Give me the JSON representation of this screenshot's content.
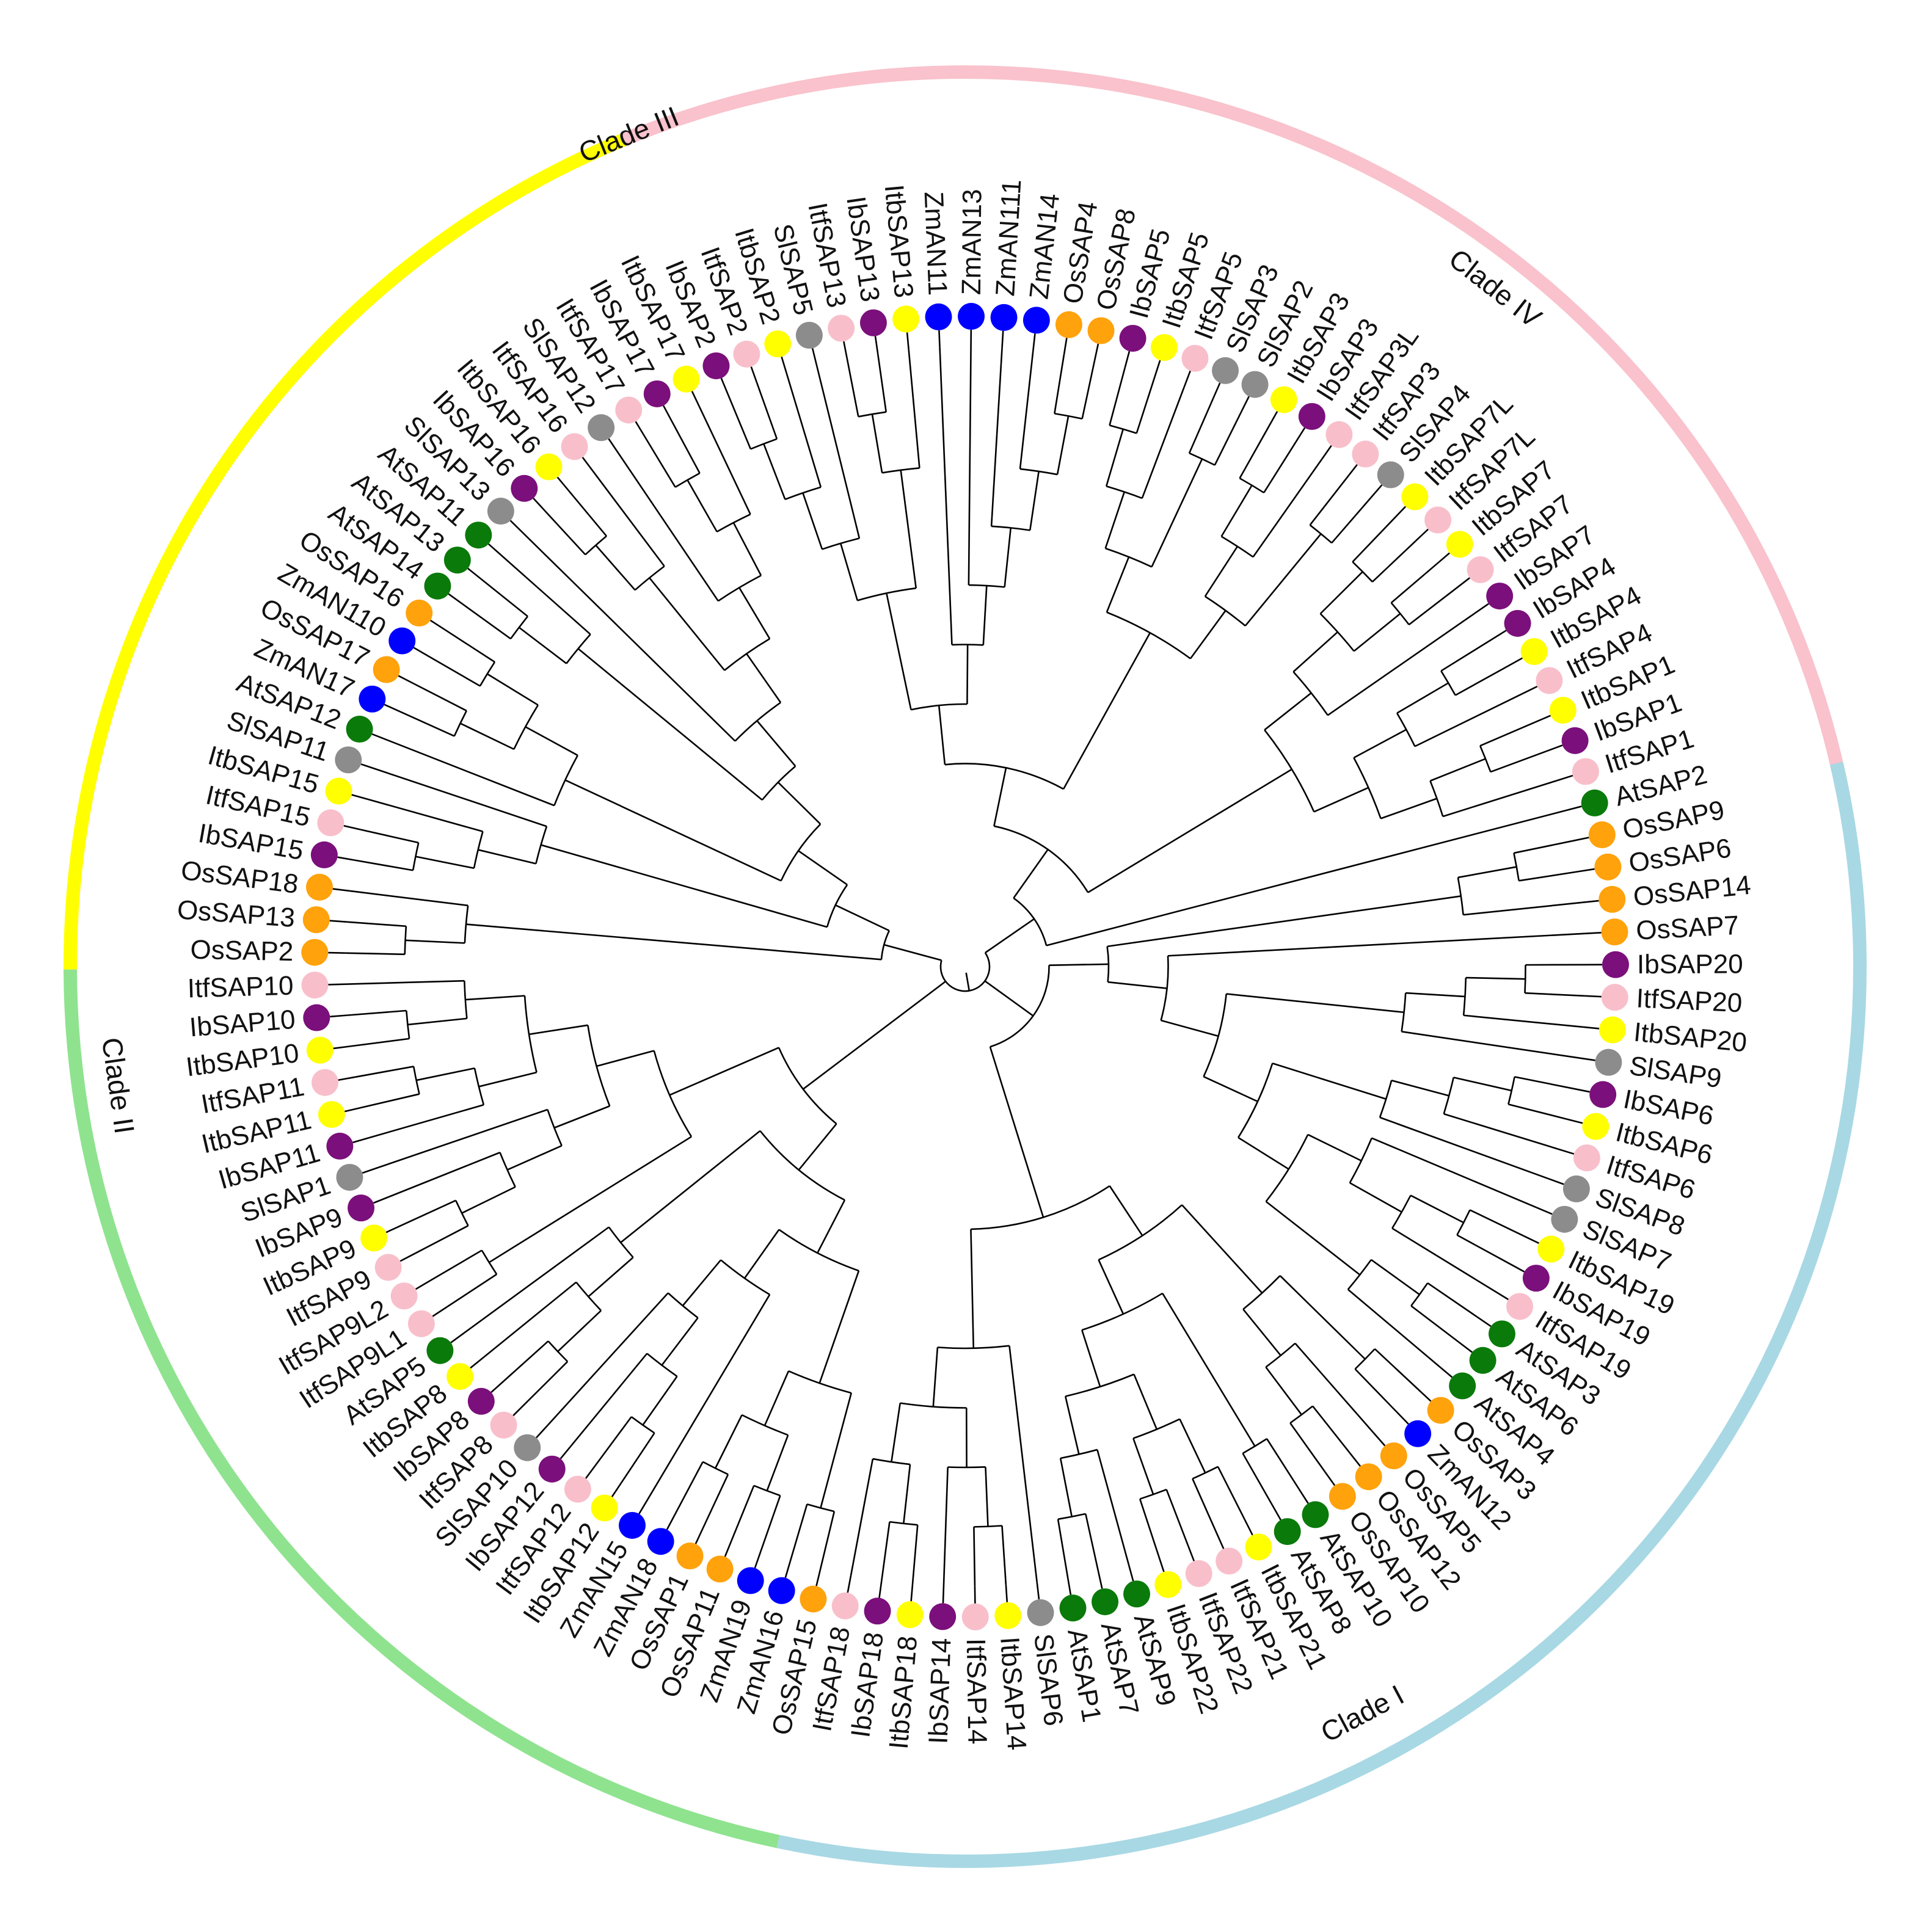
{
  "species_colors": {
    "Ib": "#7b0f7b",
    "Itf": "#f8bfcb",
    "Itb": "#ffff00",
    "Sl": "#8c8c8c",
    "At": "#0a7a0a",
    "Os": "#ffa20b",
    "Zm": "#0000ff"
  },
  "clades": [
    {
      "name": "Clade I",
      "color": "#f9c2cc"
    },
    {
      "name": "Clade II",
      "color": "#a8d8e4"
    },
    {
      "name": "Clade III",
      "color": "#8fe38f"
    },
    {
      "name": "Clade IV",
      "color": "#ffff00"
    }
  ],
  "leaves": [
    {
      "label": "IbSAP2",
      "species": "Ib"
    },
    {
      "label": "ItfSAP2",
      "species": "Itf"
    },
    {
      "label": "ItbSAP2",
      "species": "Itb"
    },
    {
      "label": "SlSAP5",
      "species": "Sl"
    },
    {
      "label": "ItfSAP13",
      "species": "Itf"
    },
    {
      "label": "IbSAP13",
      "species": "Ib"
    },
    {
      "label": "ItbSAP13",
      "species": "Itb"
    },
    {
      "label": "ZmAN11",
      "species": "Zm"
    },
    {
      "label": "ZmAN13",
      "species": "Zm"
    },
    {
      "label": "ZmAN111",
      "species": "Zm"
    },
    {
      "label": "ZmAN14",
      "species": "Zm"
    },
    {
      "label": "OsSAP4",
      "species": "Os"
    },
    {
      "label": "OsSAP8",
      "species": "Os"
    },
    {
      "label": "IbSAP5",
      "species": "Ib"
    },
    {
      "label": "ItbSAP5",
      "species": "Itb"
    },
    {
      "label": "ItfSAP5",
      "species": "Itf"
    },
    {
      "label": "SlSAP3",
      "species": "Sl"
    },
    {
      "label": "SlSAP2",
      "species": "Sl"
    },
    {
      "label": "ItbSAP3",
      "species": "Itb"
    },
    {
      "label": "IbSAP3",
      "species": "Ib"
    },
    {
      "label": "ItfSAP3L",
      "species": "Itf"
    },
    {
      "label": "ItfSAP3",
      "species": "Itf"
    },
    {
      "label": "SlSAP4",
      "species": "Sl"
    },
    {
      "label": "ItbSAP7L",
      "species": "Itb"
    },
    {
      "label": "ItfSAP7L",
      "species": "Itf"
    },
    {
      "label": "ItbSAP7",
      "species": "Itb"
    },
    {
      "label": "ItfSAP7",
      "species": "Itf"
    },
    {
      "label": "IbSAP7",
      "species": "Ib"
    },
    {
      "label": "IbSAP4",
      "species": "Ib"
    },
    {
      "label": "ItbSAP4",
      "species": "Itb"
    },
    {
      "label": "ItfSAP4",
      "species": "Itf"
    },
    {
      "label": "ItbSAP1",
      "species": "Itb"
    },
    {
      "label": "IbSAP1",
      "species": "Ib"
    },
    {
      "label": "ItfSAP1",
      "species": "Itf"
    },
    {
      "label": "AtSAP2",
      "species": "At"
    },
    {
      "label": "OsSAP9",
      "species": "Os"
    },
    {
      "label": "OsSAP6",
      "species": "Os"
    },
    {
      "label": "OsSAP14",
      "species": "Os"
    },
    {
      "label": "OsSAP7",
      "species": "Os"
    },
    {
      "label": "IbSAP20",
      "species": "Ib"
    },
    {
      "label": "ItfSAP20",
      "species": "Itf"
    },
    {
      "label": "ItbSAP20",
      "species": "Itb"
    },
    {
      "label": "SlSAP9",
      "species": "Sl"
    },
    {
      "label": "IbSAP6",
      "species": "Ib"
    },
    {
      "label": "ItbSAP6",
      "species": "Itb"
    },
    {
      "label": "ItfSAP6",
      "species": "Itf"
    },
    {
      "label": "SlSAP8",
      "species": "Sl"
    },
    {
      "label": "SlSAP7",
      "species": "Sl"
    },
    {
      "label": "ItbSAP19",
      "species": "Itb"
    },
    {
      "label": "IbSAP19",
      "species": "Ib"
    },
    {
      "label": "ItfSAP19",
      "species": "Itf"
    },
    {
      "label": "AtSAP3",
      "species": "At"
    },
    {
      "label": "AtSAP6",
      "species": "At"
    },
    {
      "label": "AtSAP4",
      "species": "At"
    },
    {
      "label": "OsSAP3",
      "species": "Os"
    },
    {
      "label": "ZmAN12",
      "species": "Zm"
    },
    {
      "label": "OsSAP5",
      "species": "Os"
    },
    {
      "label": "OsSAP12",
      "species": "Os"
    },
    {
      "label": "OsSAP10",
      "species": "Os"
    },
    {
      "label": "AtSAP10",
      "species": "At"
    },
    {
      "label": "AtSAP8",
      "species": "At"
    },
    {
      "label": "ItbSAP21",
      "species": "Itb"
    },
    {
      "label": "ItfSAP21",
      "species": "Itf"
    },
    {
      "label": "ItfSAP22",
      "species": "Itf"
    },
    {
      "label": "ItbSAP22",
      "species": "Itb"
    },
    {
      "label": "AtSAP9",
      "species": "At"
    },
    {
      "label": "AtSAP7",
      "species": "At"
    },
    {
      "label": "AtSAP1",
      "species": "At"
    },
    {
      "label": "SlSAP6",
      "species": "Sl"
    },
    {
      "label": "ItbSAP14",
      "species": "Itb"
    },
    {
      "label": "ItfSAP14",
      "species": "Itf"
    },
    {
      "label": "IbSAP14",
      "species": "Ib"
    },
    {
      "label": "ItbSAP18",
      "species": "Itb"
    },
    {
      "label": "IbSAP18",
      "species": "Ib"
    },
    {
      "label": "ItfSAP18",
      "species": "Itf"
    },
    {
      "label": "OsSAP15",
      "species": "Os"
    },
    {
      "label": "ZmAN16",
      "species": "Zm"
    },
    {
      "label": "ZmAN19",
      "species": "Zm"
    },
    {
      "label": "OsSAP11",
      "species": "Os"
    },
    {
      "label": "OsSAP1",
      "species": "Os"
    },
    {
      "label": "ZmAN18",
      "species": "Zm"
    },
    {
      "label": "ZmAN15",
      "species": "Zm"
    },
    {
      "label": "ItbSAP12",
      "species": "Itb"
    },
    {
      "label": "ItfSAP12",
      "species": "Itf"
    },
    {
      "label": "IbSAP12",
      "species": "Ib"
    },
    {
      "label": "SlSAP10",
      "species": "Sl"
    },
    {
      "label": "ItfSAP8",
      "species": "Itf"
    },
    {
      "label": "IbSAP8",
      "species": "Ib"
    },
    {
      "label": "ItbSAP8",
      "species": "Itb"
    },
    {
      "label": "AtSAP5",
      "species": "At"
    },
    {
      "label": "ItfSAP9L1",
      "species": "Itf"
    },
    {
      "label": "ItfSAP9L2",
      "species": "Itf"
    },
    {
      "label": "ItfSAP9",
      "species": "Itf"
    },
    {
      "label": "ItbSAP9",
      "species": "Itb"
    },
    {
      "label": "IbSAP9",
      "species": "Ib"
    },
    {
      "label": "SlSAP1",
      "species": "Sl"
    },
    {
      "label": "IbSAP11",
      "species": "Ib"
    },
    {
      "label": "ItbSAP11",
      "species": "Itb"
    },
    {
      "label": "ItfSAP11",
      "species": "Itf"
    },
    {
      "label": "ItbSAP10",
      "species": "Itb"
    },
    {
      "label": "IbSAP10",
      "species": "Ib"
    },
    {
      "label": "ItfSAP10",
      "species": "Itf"
    },
    {
      "label": "OsSAP2",
      "species": "Os"
    },
    {
      "label": "OsSAP13",
      "species": "Os"
    },
    {
      "label": "OsSAP18",
      "species": "Os"
    },
    {
      "label": "IbSAP15",
      "species": "Ib"
    },
    {
      "label": "ItfSAP15",
      "species": "Itf"
    },
    {
      "label": "ItbSAP15",
      "species": "Itb"
    },
    {
      "label": "SlSAP11",
      "species": "Sl"
    },
    {
      "label": "AtSAP12",
      "species": "At"
    },
    {
      "label": "ZmAN17",
      "species": "Zm"
    },
    {
      "label": "OsSAP17",
      "species": "Os"
    },
    {
      "label": "ZmAN110",
      "species": "Zm"
    },
    {
      "label": "OsSAP16",
      "species": "Os"
    },
    {
      "label": "AtSAP14",
      "species": "At"
    },
    {
      "label": "AtSAP13",
      "species": "At"
    },
    {
      "label": "AtSAP11",
      "species": "At"
    },
    {
      "label": "SlSAP13",
      "species": "Sl"
    },
    {
      "label": "IbSAP16",
      "species": "Ib"
    },
    {
      "label": "ItbSAP16",
      "species": "Itb"
    },
    {
      "label": "ItfSAP16",
      "species": "Itf"
    },
    {
      "label": "SlSAP12",
      "species": "Sl"
    },
    {
      "label": "ItfSAP17",
      "species": "Itf"
    },
    {
      "label": "IbSAP17",
      "species": "Ib"
    },
    {
      "label": "ItbSAP17",
      "species": "Itb"
    }
  ],
  "tree": [
    [
      [
        [
          [
            [
              [
                [
                  [
                    "IbSAP2",
                    "ItfSAP2"
                  ],
                  "ItbSAP2"
                ],
                "SlSAP5"
              ],
              [
                [
                  "ItfSAP13",
                  "IbSAP13"
                ],
                "ItbSAP13"
              ]
            ],
            [
              "ZmAN11",
              [
                "ZmAN13",
                [
                  "ZmAN111",
                  [
                    "ZmAN14",
                    [
                      "OsSAP4",
                      "OsSAP8"
                    ]
                  ]
                ]
              ]
            ]
          ],
          [
            [
              [
                [
                  "IbSAP5",
                  "ItbSAP5"
                ],
                "ItfSAP5"
              ],
              [
                "SlSAP3",
                "SlSAP2"
              ]
            ],
            [
              [
                [
                  "ItbSAP3",
                  "IbSAP3"
                ],
                "ItfSAP3L"
              ],
              [
                "ItfSAP3",
                "SlSAP4"
              ]
            ]
          ]
        ],
        [
          [
            [
              [
                "ItbSAP7L",
                "ItfSAP7L"
              ],
              [
                "ItbSAP7",
                "ItfSAP7"
              ]
            ],
            "IbSAP7"
          ],
          [
            [
              [
                "IbSAP4",
                "ItbSAP4"
              ],
              "ItfSAP4"
            ],
            [
              [
                "ItbSAP1",
                "IbSAP1"
              ],
              "ItfSAP1"
            ]
          ]
        ]
      ],
      "AtSAP2"
    ],
    [
      [
        [
          [
            "OsSAP9",
            "OsSAP6"
          ],
          "OsSAP14"
        ],
        [
          "OsSAP7",
          [
            [
              [
                [
                  "IbSAP20",
                  "ItfSAP20"
                ],
                "ItbSAP20"
              ],
              "SlSAP9"
            ],
            [
              [
                [
                  [
                    "IbSAP6",
                    "ItbSAP6"
                  ],
                  "ItfSAP6"
                ],
                "SlSAP8"
              ],
              [
                [
                  "SlSAP7",
                  [
                    [
                      "ItbSAP19",
                      "IbSAP19"
                    ],
                    "ItfSAP19"
                  ]
                ],
                [
                  [
                    "AtSAP3",
                    "AtSAP6"
                  ],
                  "AtSAP4"
                ]
              ]
            ]
          ]
        ]
      ],
      [
        [
          [
            [
              "OsSAP3",
              "ZmAN12"
            ],
            [
              "OsSAP5",
              [
                "OsSAP12",
                "OsSAP10"
              ]
            ]
          ],
          [
            [
              "AtSAP10",
              "AtSAP8"
            ],
            [
              [
                [
                  "ItbSAP21",
                  "ItfSAP21"
                ],
                [
                  "ItfSAP22",
                  "ItbSAP22"
                ]
              ],
              [
                "AtSAP9",
                [
                  "AtSAP7",
                  "AtSAP1"
                ]
              ]
            ]
          ]
        ],
        [
          "SlSAP6",
          [
            [
              [
                "ItbSAP14",
                "ItfSAP14"
              ],
              "IbSAP14"
            ],
            [
              [
                "ItbSAP18",
                "IbSAP18"
              ],
              "ItfSAP18"
            ]
          ]
        ]
      ]
    ],
    [
      [
        [
          [
            [
              "OsSAP15",
              "ZmAN16"
            ],
            [
              [
                "ZmAN19",
                "OsSAP11"
              ],
              [
                "OsSAP1",
                "ZmAN18"
              ]
            ]
          ],
          [
            "ZmAN15",
            [
              [
                [
                  "ItbSAP12",
                  "ItfSAP12"
                ],
                "IbSAP12"
              ],
              "SlSAP10"
            ]
          ]
        ],
        [
          [
            [
              "ItfSAP8",
              "IbSAP8"
            ],
            "ItbSAP8"
          ],
          "AtSAP5"
        ]
      ],
      [
        [
          "ItfSAP9L1",
          "ItfSAP9L2"
        ],
        [
          [
            [
              [
                "ItfSAP9",
                "ItbSAP9"
              ],
              "IbSAP9"
            ],
            "SlSAP1"
          ],
          [
            [
              "IbSAP11",
              [
                "ItbSAP11",
                "ItfSAP11"
              ]
            ],
            [
              [
                "ItbSAP10",
                "IbSAP10"
              ],
              "ItfSAP10"
            ]
          ]
        ]
      ]
    ],
    [
      [
        [
          "OsSAP2",
          "OsSAP13"
        ],
        "OsSAP18"
      ],
      [
        [
          [
            [
              "IbSAP15",
              "ItfSAP15"
            ],
            "ItbSAP15"
          ],
          "SlSAP11"
        ],
        [
          [
            "AtSAP12",
            [
              [
                "ZmAN17",
                "OsSAP17"
              ],
              [
                "ZmAN110",
                "OsSAP16"
              ]
            ]
          ],
          [
            [
              [
                "AtSAP14",
                "AtSAP13"
              ],
              "AtSAP11"
            ],
            [
              "SlSAP13",
              [
                [
                  [
                    "IbSAP16",
                    "ItbSAP16"
                  ],
                  "ItfSAP16"
                ],
                [
                  "SlSAP12",
                  [
                    [
                      "ItfSAP17",
                      "IbSAP17"
                    ],
                    "ItbSAP17"
                  ]
                ]
              ]
            ]
          ]
        ]
      ]
    ]
  ]
}
